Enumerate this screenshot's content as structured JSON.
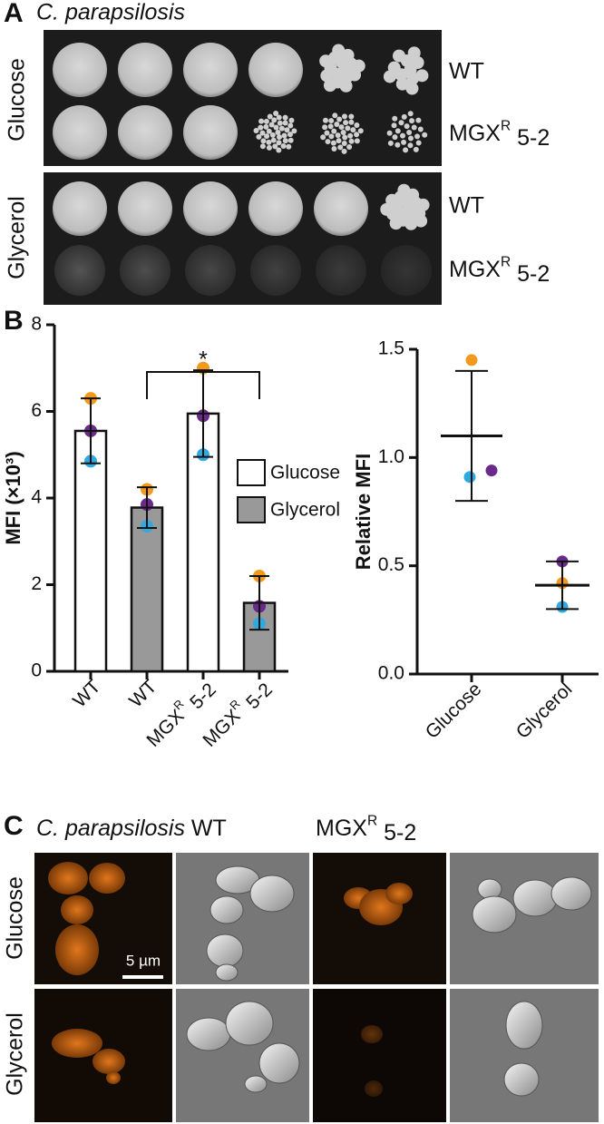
{
  "panel_a": {
    "letter": "A",
    "title": "C. parapsilosis",
    "rows": [
      "Glucose",
      "Glycerol"
    ],
    "strains": [
      "WT",
      {
        "base": "MGX",
        "sup": "R",
        "rest": " 5-2"
      }
    ]
  },
  "panel_b": {
    "letter": "B"
  },
  "chart_data": [
    {
      "type": "bar",
      "ylabel": "MFI (×10³)",
      "categories": [
        "WT",
        "WT",
        {
          "base": "MGX",
          "sup": "R",
          "rest": " 5-2"
        },
        {
          "base": "MGX",
          "sup": "R",
          "rest": " 5-2"
        }
      ],
      "series": [
        {
          "name": "Glucose",
          "color": "#ffffff",
          "values": [
            5.55,
            null,
            5.95,
            null
          ],
          "errors": [
            0.75,
            null,
            1.0,
            null
          ]
        },
        {
          "name": "Glycerol",
          "color": "#999999",
          "values": [
            null,
            3.78,
            null,
            1.58
          ],
          "errors": [
            null,
            0.47,
            null,
            0.62
          ]
        }
      ],
      "replicates": [
        {
          "color": "#f39a1e",
          "values": [
            6.3,
            4.2,
            7.0,
            2.2
          ]
        },
        {
          "color": "#6a2a8c",
          "values": [
            5.55,
            3.85,
            5.9,
            1.5
          ]
        },
        {
          "color": "#2fa9df",
          "values": [
            4.85,
            3.35,
            5.0,
            1.1
          ]
        }
      ],
      "annotations": [
        {
          "text": "*"
        }
      ],
      "ylim": [
        0,
        8
      ],
      "yticks": [
        0,
        2,
        4,
        6,
        8
      ]
    },
    {
      "type": "scatter",
      "ylabel": "Relative MFI",
      "categories": [
        "Glucose",
        "Glycerol"
      ],
      "points": [
        {
          "color": "#f39a1e",
          "values": [
            1.45,
            0.42
          ]
        },
        {
          "color": "#6a2a8c",
          "values": [
            0.94,
            0.52
          ]
        },
        {
          "color": "#2fa9df",
          "values": [
            0.91,
            0.31
          ]
        }
      ],
      "means": [
        1.1,
        0.41
      ],
      "errors": [
        0.3,
        0.11
      ],
      "ylim": [
        0,
        1.5
      ],
      "yticks": [
        {
          "value": 0,
          "label": "0.0"
        },
        0.5,
        {
          "value": 1,
          "label": "1.0"
        },
        1.5
      ]
    }
  ],
  "panel_c": {
    "letter": "C",
    "title_wt": {
      "italic": "C. parapsilosis",
      "rest": " WT"
    },
    "title_mgx": {
      "base": "MGX",
      "sup": "R",
      "rest": " 5-2"
    },
    "rows": [
      "Glucose",
      "Glycerol"
    ],
    "scale": "5 µm"
  }
}
